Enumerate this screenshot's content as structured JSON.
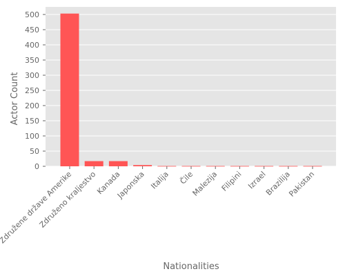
{
  "chart_data": {
    "type": "bar",
    "xlabel": "Nationalities",
    "ylabel": "Actor Count",
    "categories": [
      "Združene države Amerike",
      "Združeno kraljestvo",
      "Kanada",
      "Japonska",
      "Italija",
      "Čile",
      "Malezija",
      "Filipini",
      "Izrael",
      "Brazilija",
      "Pakistan"
    ],
    "values": [
      503,
      17,
      17,
      4,
      1,
      1,
      1,
      1,
      1,
      1,
      1
    ],
    "ylim": [
      0,
      525
    ],
    "yticks": [
      0,
      50,
      100,
      150,
      200,
      250,
      300,
      350,
      400,
      450,
      500
    ],
    "grid": true,
    "bar_color": "#ff5555",
    "panel_background": "#e5e5e5",
    "grid_color": "#ffffff"
  }
}
